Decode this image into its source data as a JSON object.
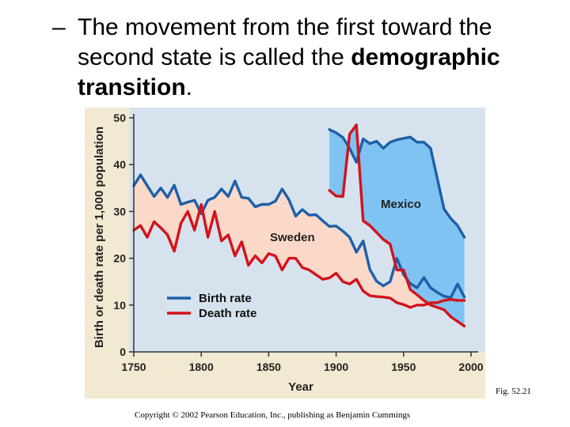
{
  "slide": {
    "dash": "–",
    "text_plain": "The movement from the first toward the second state is called the ",
    "text_bold": "demographic transition",
    "text_end": ".",
    "fig_label": "Fig. 52.21",
    "copyright": "Copyright © 2002 Pearson Education, Inc., publishing as Benjamin Cummings"
  },
  "colors": {
    "birth": "#1f5fa8",
    "death": "#d4121c",
    "plot_bg": "#d6e3ee",
    "figure_bg": "#f1e9d2",
    "mexico_fill": "#7ec3f2",
    "sweden_fill": "#fad9c9",
    "sweden_fill_late": "#dcc8e4"
  },
  "chart_data": {
    "type": "line",
    "xlabel": "Year",
    "ylabel": "Birth or death rate per 1,000 population",
    "xlim": [
      1750,
      2000
    ],
    "ylim": [
      0,
      50
    ],
    "xticks": [
      1750,
      1800,
      1850,
      1900,
      1950,
      2000
    ],
    "yticks": [
      0,
      10,
      20,
      30,
      40,
      50
    ],
    "legend": {
      "position": "lower-left",
      "entries": [
        "Birth rate",
        "Death rate"
      ]
    },
    "annotations": [
      "Mexico",
      "Sweden"
    ],
    "series": [
      {
        "country": "Sweden",
        "metric": "Birth rate",
        "x": [
          1750,
          1755,
          1760,
          1765,
          1770,
          1775,
          1780,
          1785,
          1790,
          1795,
          1800,
          1805,
          1810,
          1815,
          1820,
          1825,
          1830,
          1835,
          1840,
          1845,
          1850,
          1855,
          1860,
          1865,
          1870,
          1875,
          1880,
          1885,
          1890,
          1895,
          1900,
          1905,
          1910,
          1915,
          1920,
          1925,
          1930,
          1935,
          1940,
          1945,
          1950,
          1955,
          1960,
          1965,
          1970,
          1975,
          1980,
          1985,
          1990,
          1995
        ],
        "y": [
          35.5,
          37.8,
          35.5,
          33.2,
          35.0,
          33.0,
          35.6,
          31.5,
          32.0,
          32.4,
          29.5,
          32.4,
          33.0,
          34.8,
          33.2,
          36.5,
          33.0,
          32.8,
          31.0,
          31.5,
          31.5,
          32.2,
          34.8,
          32.5,
          29.0,
          30.4,
          29.2,
          29.3,
          28.0,
          26.8,
          26.9,
          25.8,
          24.5,
          21.3,
          23.7,
          17.6,
          15.1,
          14.1,
          15.0,
          20.0,
          16.5,
          14.6,
          13.7,
          15.9,
          13.7,
          12.7,
          11.9,
          11.6,
          14.5,
          11.7
        ]
      },
      {
        "country": "Sweden",
        "metric": "Death rate",
        "x": [
          1750,
          1755,
          1760,
          1765,
          1770,
          1775,
          1780,
          1785,
          1790,
          1795,
          1800,
          1805,
          1810,
          1815,
          1820,
          1825,
          1830,
          1835,
          1840,
          1845,
          1850,
          1855,
          1860,
          1865,
          1870,
          1875,
          1880,
          1885,
          1890,
          1895,
          1900,
          1905,
          1910,
          1915,
          1920,
          1925,
          1930,
          1935,
          1940,
          1945,
          1950,
          1955,
          1960,
          1965,
          1970,
          1975,
          1980,
          1985,
          1990,
          1995
        ],
        "y": [
          26.0,
          27.0,
          24.5,
          27.8,
          26.5,
          25.0,
          21.5,
          27.5,
          30.0,
          26.0,
          31.5,
          24.5,
          30.0,
          23.7,
          25.0,
          20.5,
          23.5,
          18.5,
          20.5,
          19.0,
          21.0,
          20.5,
          17.5,
          20.0,
          20.0,
          18.0,
          17.5,
          16.5,
          15.5,
          15.8,
          16.8,
          15.0,
          14.5,
          15.5,
          13.0,
          12.0,
          11.8,
          11.7,
          11.5,
          10.5,
          10.1,
          9.5,
          10.0,
          10.0,
          10.5,
          10.5,
          11.0,
          11.2,
          11.0,
          11.0
        ]
      },
      {
        "country": "Mexico",
        "metric": "Birth rate",
        "x": [
          1895,
          1900,
          1905,
          1910,
          1915,
          1920,
          1925,
          1930,
          1935,
          1940,
          1945,
          1950,
          1955,
          1960,
          1965,
          1970,
          1975,
          1980,
          1985,
          1990,
          1995
        ],
        "y": [
          47.5,
          46.8,
          45.8,
          43.5,
          40.5,
          45.5,
          44.5,
          45.0,
          43.5,
          44.8,
          45.3,
          45.6,
          45.9,
          44.8,
          44.8,
          43.5,
          37.0,
          30.5,
          28.5,
          27.0,
          24.5
        ]
      },
      {
        "country": "Mexico",
        "metric": "Death rate",
        "x": [
          1895,
          1900,
          1905,
          1910,
          1915,
          1920,
          1925,
          1930,
          1935,
          1940,
          1945,
          1950,
          1955,
          1960,
          1965,
          1970,
          1975,
          1980,
          1985,
          1990,
          1995
        ],
        "y": [
          34.5,
          33.3,
          33.2,
          46.5,
          48.5,
          28.0,
          27.0,
          25.5,
          24.0,
          23.0,
          17.5,
          17.5,
          13.3,
          12.2,
          11.0,
          10.0,
          9.5,
          9.0,
          7.5,
          6.5,
          5.5
        ]
      }
    ]
  }
}
